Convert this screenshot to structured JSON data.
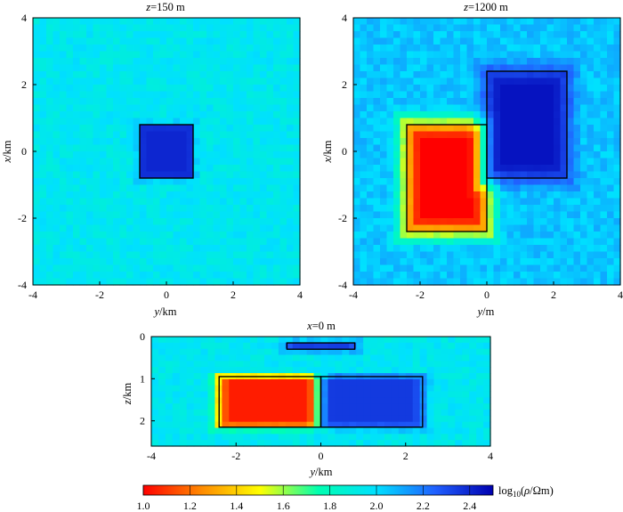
{
  "chart_data": [
    {
      "type": "heatmap",
      "title": {
        "var": "z",
        "rest": "=150 m"
      },
      "xlabel": {
        "var": "y",
        "rest": "/km"
      },
      "ylabel": {
        "var": "x",
        "rest": "/km"
      },
      "xlim": [
        -4,
        4
      ],
      "ylim": [
        -4,
        4
      ],
      "xticks": [
        "-4",
        "-2",
        "0",
        "2",
        "4"
      ],
      "yticks": [
        "-4",
        "-2",
        "0",
        "2",
        "4"
      ],
      "background": 1.95,
      "anomalies": [
        {
          "y": [
            -0.8,
            0.8
          ],
          "x": [
            -0.8,
            0.8
          ],
          "value": 2.4
        }
      ],
      "outlines": [
        {
          "y": [
            -0.8,
            0.8
          ],
          "x": [
            -0.8,
            0.8
          ]
        }
      ]
    },
    {
      "type": "heatmap",
      "title": {
        "var": "z",
        "rest": "=1200 m"
      },
      "xlabel": {
        "var": "y",
        "rest": "/m"
      },
      "ylabel": {
        "var": "x",
        "rest": "/km"
      },
      "xlim": [
        -4,
        4
      ],
      "ylim": [
        -4,
        4
      ],
      "xticks": [
        "-4",
        "-2",
        "0",
        "2",
        "4"
      ],
      "yticks": [
        "-4",
        "-2",
        "0",
        "2",
        "4"
      ],
      "background": 2.05,
      "anomalies": [
        {
          "y": [
            -2.4,
            0
          ],
          "x": [
            -2.4,
            0.8
          ],
          "value": 1.0
        },
        {
          "y": [
            0,
            2.4
          ],
          "x": [
            -0.8,
            2.4
          ],
          "value": 2.45
        }
      ],
      "outlines": [
        {
          "y": [
            -2.4,
            0
          ],
          "x": [
            -2.4,
            0.8
          ]
        },
        {
          "y": [
            0,
            2.4
          ],
          "x": [
            -0.8,
            2.4
          ]
        }
      ]
    },
    {
      "type": "heatmap",
      "title": {
        "var": "x",
        "rest": "=0 m"
      },
      "xlabel": {
        "var": "y",
        "rest": "/km"
      },
      "ylabel": {
        "var": "z",
        "rest": "/km"
      },
      "xlim": [
        -4,
        4
      ],
      "ylim": [
        0,
        2.6
      ],
      "xticks": [
        "-4",
        "-2",
        "0",
        "2",
        "4"
      ],
      "yticks": [
        "0",
        "1",
        "2"
      ],
      "background": 1.95,
      "anomalies": [
        {
          "y": [
            -0.8,
            0.8
          ],
          "z": [
            0.15,
            0.3
          ],
          "value": 2.4
        },
        {
          "y": [
            -2.4,
            0
          ],
          "z": [
            0.95,
            2.15
          ],
          "value": 1.05
        },
        {
          "y": [
            0,
            2.4
          ],
          "z": [
            0.95,
            2.15
          ],
          "value": 2.35
        }
      ],
      "outlines": [
        {
          "y": [
            -0.8,
            0.8
          ],
          "z": [
            0.15,
            0.3
          ]
        },
        {
          "y": [
            -2.4,
            0
          ],
          "z": [
            0.95,
            2.15
          ]
        },
        {
          "y": [
            0,
            2.4
          ],
          "z": [
            0.95,
            2.15
          ]
        }
      ]
    }
  ],
  "colorbar": {
    "range": [
      1.0,
      2.5
    ],
    "ticks": [
      "1.0",
      "1.2",
      "1.4",
      "1.6",
      "1.8",
      "2.0",
      "2.2",
      "2.4"
    ],
    "label_pre": "log",
    "label_sub": "10",
    "label_open": "(",
    "label_rho": "ρ",
    "label_post": "/Ωm)",
    "colors": [
      "#ff0000",
      "#ff8a00",
      "#ffff00",
      "#00ffb0",
      "#00e0ff",
      "#2060ff",
      "#0000b0"
    ]
  }
}
